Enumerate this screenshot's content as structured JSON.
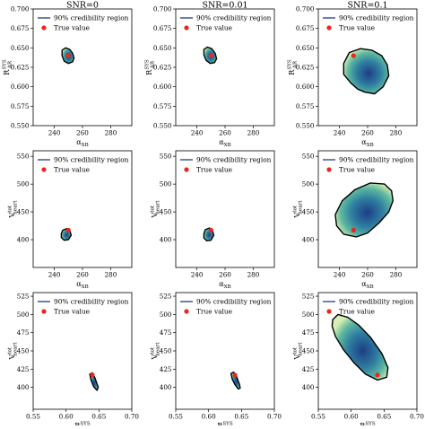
{
  "column_titles": [
    "SNR=0",
    "SNR=0.01",
    "SNR=0.1"
  ],
  "legend": {
    "region_label": "90% credibility region",
    "true_label": "True value"
  },
  "colors": {
    "contour_line": "#000000",
    "true_marker": "#e8281e",
    "legend_line": "#1f3c88",
    "density_low": "#d7eeb4",
    "density_mid": "#41a6a0",
    "density_high": "#1d3d87"
  },
  "chart_data": [
    {
      "type": "scatter",
      "row": 0,
      "col": 0,
      "title": "SNR=0",
      "xlabel": "α_XB",
      "ylabel": "R_AR^SYS",
      "xlim": [
        225,
        295
      ],
      "ylim": [
        0.55,
        0.7
      ],
      "xticks": [
        240,
        260,
        280
      ],
      "yticks": [
        0.55,
        0.575,
        0.6,
        0.625,
        0.65,
        0.675,
        0.7
      ],
      "ytick_labels": [
        "0.550",
        "0.575",
        "0.600",
        "0.625",
        "0.650",
        "0.675",
        "0.700"
      ],
      "true_value": {
        "x": 250,
        "y": 0.64
      },
      "region": [
        [
          245.5,
          0.647
        ],
        [
          248,
          0.65
        ],
        [
          251,
          0.648
        ],
        [
          253,
          0.643
        ],
        [
          254,
          0.637
        ],
        [
          253,
          0.632
        ],
        [
          250,
          0.63
        ],
        [
          247,
          0.633
        ],
        [
          245.5,
          0.64
        ]
      ]
    },
    {
      "type": "scatter",
      "row": 0,
      "col": 1,
      "title": "SNR=0.01",
      "xlabel": "α_XB",
      "ylabel": "R_AR^SYS",
      "xlim": [
        225,
        295
      ],
      "ylim": [
        0.55,
        0.7
      ],
      "xticks": [
        240,
        260,
        280
      ],
      "yticks": [
        0.55,
        0.575,
        0.6,
        0.625,
        0.65,
        0.675,
        0.7
      ],
      "ytick_labels": [
        "0.550",
        "0.575",
        "0.600",
        "0.625",
        "0.650",
        "0.675",
        "0.700"
      ],
      "true_value": {
        "x": 250,
        "y": 0.64
      },
      "region": [
        [
          245,
          0.648
        ],
        [
          247.5,
          0.651
        ],
        [
          250.5,
          0.649
        ],
        [
          253,
          0.643
        ],
        [
          254,
          0.636
        ],
        [
          252.5,
          0.631
        ],
        [
          249.5,
          0.63
        ],
        [
          246.5,
          0.634
        ],
        [
          245,
          0.641
        ]
      ]
    },
    {
      "type": "scatter",
      "row": 0,
      "col": 2,
      "title": "SNR=0.1",
      "xlabel": "α_XB",
      "ylabel": "R_AR^SYS",
      "xlim": [
        225,
        295
      ],
      "ylim": [
        0.55,
        0.7
      ],
      "xticks": [
        240,
        260,
        280
      ],
      "yticks": [
        0.55,
        0.575,
        0.6,
        0.625,
        0.65,
        0.675,
        0.7
      ],
      "ytick_labels": [
        "0.550",
        "0.575",
        "0.600",
        "0.625",
        "0.650",
        "0.675",
        "0.700"
      ],
      "true_value": {
        "x": 250,
        "y": 0.64
      },
      "region": [
        [
          243,
          0.63
        ],
        [
          247,
          0.644
        ],
        [
          255,
          0.649
        ],
        [
          263,
          0.647
        ],
        [
          270,
          0.64
        ],
        [
          274,
          0.628
        ],
        [
          275,
          0.614
        ],
        [
          271,
          0.6
        ],
        [
          265,
          0.591
        ],
        [
          258,
          0.593
        ],
        [
          253,
          0.597
        ],
        [
          248,
          0.605
        ],
        [
          243,
          0.616
        ]
      ]
    },
    {
      "type": "scatter",
      "row": 1,
      "col": 0,
      "title": "",
      "xlabel": "α_XB",
      "ylabel": "V_heart^tot",
      "xlim": [
        225,
        295
      ],
      "ylim": [
        350,
        560
      ],
      "xticks": [
        240,
        260,
        280
      ],
      "yticks": [
        400,
        450,
        500,
        550
      ],
      "ytick_labels": [
        "400",
        "450",
        "500",
        "550"
      ],
      "true_value": {
        "x": 250,
        "y": 417
      },
      "region": [
        [
          246,
          417
        ],
        [
          249,
          420
        ],
        [
          251,
          416
        ],
        [
          252,
          408
        ],
        [
          250,
          400
        ],
        [
          247,
          399
        ],
        [
          245,
          404
        ],
        [
          245,
          411
        ]
      ]
    },
    {
      "type": "scatter",
      "row": 1,
      "col": 1,
      "title": "",
      "xlabel": "α_XB",
      "ylabel": "V_heart^tot",
      "xlim": [
        225,
        295
      ],
      "ylim": [
        350,
        560
      ],
      "xticks": [
        240,
        260,
        280
      ],
      "yticks": [
        400,
        450,
        500,
        550
      ],
      "ytick_labels": [
        "400",
        "450",
        "500",
        "550"
      ],
      "true_value": {
        "x": 250,
        "y": 417
      },
      "region": [
        [
          246,
          418
        ],
        [
          249,
          421
        ],
        [
          251,
          417
        ],
        [
          252,
          408
        ],
        [
          250,
          399
        ],
        [
          247,
          398
        ],
        [
          245,
          403
        ],
        [
          245,
          411
        ]
      ]
    },
    {
      "type": "scatter",
      "row": 1,
      "col": 2,
      "title": "",
      "xlabel": "α_XB",
      "ylabel": "V_heart^tot",
      "xlim": [
        225,
        295
      ],
      "ylim": [
        350,
        560
      ],
      "xticks": [
        240,
        260,
        280
      ],
      "yticks": [
        400,
        450,
        500,
        550
      ],
      "ytick_labels": [
        "400",
        "450",
        "500",
        "550"
      ],
      "true_value": {
        "x": 250,
        "y": 417
      },
      "region": [
        [
          237,
          445
        ],
        [
          242,
          470
        ],
        [
          251,
          490
        ],
        [
          262,
          502
        ],
        [
          272,
          500
        ],
        [
          277,
          488
        ],
        [
          278,
          470
        ],
        [
          275,
          450
        ],
        [
          268,
          430
        ],
        [
          260,
          412
        ],
        [
          252,
          405
        ],
        [
          243,
          410
        ],
        [
          238,
          425
        ]
      ]
    },
    {
      "type": "scatter",
      "row": 2,
      "col": 0,
      "title": "",
      "xlabel": "R_AR^SYS",
      "ylabel": "V_heart^tot",
      "xlim": [
        0.55,
        0.7
      ],
      "ylim": [
        370,
        530
      ],
      "xticks": [
        0.55,
        0.6,
        0.65,
        0.7
      ],
      "yticks": [
        400,
        425,
        450,
        475,
        500,
        525
      ],
      "xtick_labels": [
        "0.55",
        "0.60",
        "0.65",
        "0.70"
      ],
      "ytick_labels": [
        "400",
        "425",
        "450",
        "475",
        "500",
        "525"
      ],
      "true_value": {
        "x": 0.64,
        "y": 417
      },
      "region": [
        [
          0.636,
          418
        ],
        [
          0.64,
          420
        ],
        [
          0.644,
          413
        ],
        [
          0.649,
          400
        ],
        [
          0.647,
          396
        ],
        [
          0.642,
          401
        ],
        [
          0.638,
          410
        ]
      ]
    },
    {
      "type": "scatter",
      "row": 2,
      "col": 1,
      "title": "",
      "xlabel": "R_AR^SYS",
      "ylabel": "V_heart^tot",
      "xlim": [
        0.55,
        0.7
      ],
      "ylim": [
        370,
        530
      ],
      "xticks": [
        0.55,
        0.6,
        0.65,
        0.7
      ],
      "yticks": [
        400,
        425,
        450,
        475,
        500,
        525
      ],
      "xtick_labels": [
        "0.55",
        "0.60",
        "0.65",
        "0.70"
      ],
      "ytick_labels": [
        "400",
        "425",
        "450",
        "475",
        "500",
        "525"
      ],
      "true_value": {
        "x": 0.64,
        "y": 417
      },
      "region": [
        [
          0.634,
          419
        ],
        [
          0.638,
          421
        ],
        [
          0.642,
          416
        ],
        [
          0.647,
          404
        ],
        [
          0.648,
          399
        ],
        [
          0.645,
          398
        ],
        [
          0.64,
          404
        ],
        [
          0.636,
          411
        ]
      ]
    },
    {
      "type": "scatter",
      "row": 2,
      "col": 2,
      "title": "",
      "xlabel": "R_AR^SYS",
      "ylabel": "V_heart^tot",
      "xlim": [
        0.55,
        0.7
      ],
      "ylim": [
        370,
        530
      ],
      "xticks": [
        0.55,
        0.6,
        0.65,
        0.7
      ],
      "yticks": [
        400,
        425,
        450,
        475,
        500,
        525
      ],
      "xtick_labels": [
        "0.55",
        "0.60",
        "0.65",
        "0.70"
      ],
      "ytick_labels": [
        "400",
        "425",
        "450",
        "475",
        "500",
        "525"
      ],
      "true_value": {
        "x": 0.64,
        "y": 417
      },
      "region": [
        [
          0.572,
          493
        ],
        [
          0.58,
          500
        ],
        [
          0.595,
          496
        ],
        [
          0.612,
          485
        ],
        [
          0.63,
          468
        ],
        [
          0.647,
          446
        ],
        [
          0.656,
          427
        ],
        [
          0.654,
          414
        ],
        [
          0.64,
          410
        ],
        [
          0.622,
          418
        ],
        [
          0.605,
          433
        ],
        [
          0.588,
          452
        ],
        [
          0.576,
          470
        ],
        [
          0.571,
          484
        ]
      ]
    }
  ]
}
